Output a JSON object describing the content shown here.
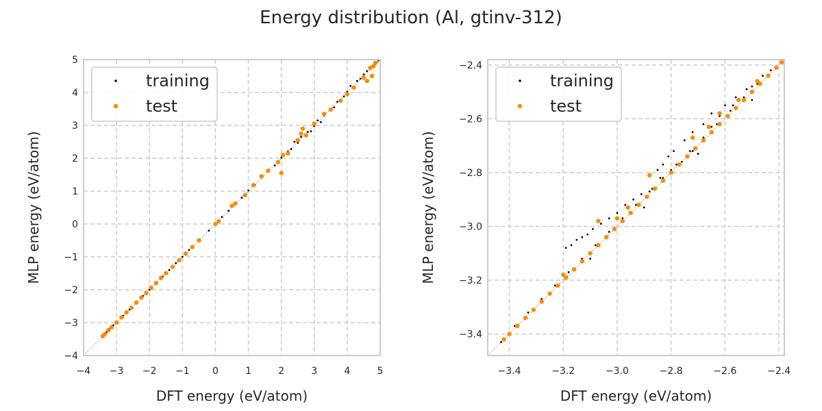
{
  "figure": {
    "title": "Energy distribution (Al, gtinv-312)"
  },
  "chart_data": [
    {
      "type": "scatter",
      "xlabel": "DFT energy (eV/atom)",
      "ylabel": "MLP energy (eV/atom)",
      "xlim": [
        -4,
        5
      ],
      "ylim": [
        -4,
        5
      ],
      "xticks": [
        "−4",
        "−3",
        "−2",
        "−1",
        "0",
        "1",
        "2",
        "3",
        "4",
        "5"
      ],
      "yticks": [
        "−4",
        "−3",
        "−2",
        "−1",
        "0",
        "1",
        "2",
        "3",
        "4",
        "5"
      ],
      "grid": true,
      "legend_position": "top-left",
      "diagonal_reference": true,
      "series": [
        {
          "name": "training",
          "color": "#000000",
          "points": [
            [
              -3.4,
              -3.38
            ],
            [
              -3.3,
              -3.29
            ],
            [
              -3.2,
              -3.18
            ],
            [
              -3.1,
              -3.08
            ],
            [
              -3.0,
              -2.99
            ],
            [
              -2.8,
              -2.79
            ],
            [
              -2.6,
              -2.6
            ],
            [
              -2.4,
              -2.4
            ],
            [
              -2.2,
              -2.19
            ],
            [
              -2.0,
              -2.0
            ],
            [
              -1.8,
              -1.79
            ],
            [
              -1.6,
              -1.6
            ],
            [
              -1.4,
              -1.4
            ],
            [
              -1.2,
              -1.19
            ],
            [
              -1.0,
              -1.0
            ],
            [
              -0.8,
              -0.79
            ],
            [
              -0.5,
              -0.5
            ],
            [
              -0.2,
              -0.2
            ],
            [
              0.0,
              0.0
            ],
            [
              0.2,
              0.21
            ],
            [
              0.4,
              0.4
            ],
            [
              0.6,
              0.62
            ],
            [
              0.8,
              0.8
            ],
            [
              1.0,
              1.02
            ],
            [
              1.2,
              1.19
            ],
            [
              1.4,
              1.42
            ],
            [
              1.6,
              1.6
            ],
            [
              1.8,
              1.78
            ],
            [
              2.0,
              2.02
            ],
            [
              2.2,
              2.21
            ],
            [
              2.3,
              2.28
            ],
            [
              2.5,
              2.47
            ],
            [
              2.6,
              2.65
            ],
            [
              2.8,
              2.8
            ],
            [
              3.0,
              2.98
            ],
            [
              3.1,
              3.15
            ],
            [
              3.3,
              3.3
            ],
            [
              3.5,
              3.48
            ],
            [
              3.7,
              3.72
            ],
            [
              3.9,
              3.88
            ],
            [
              4.0,
              4.02
            ],
            [
              4.2,
              4.18
            ],
            [
              4.3,
              4.35
            ],
            [
              4.4,
              4.42
            ],
            [
              4.5,
              4.55
            ],
            [
              4.6,
              4.65
            ],
            [
              4.7,
              4.72
            ],
            [
              4.8,
              4.82
            ],
            [
              4.9,
              4.92
            ],
            [
              4.95,
              4.98
            ],
            [
              2.4,
              2.5
            ],
            [
              2.9,
              2.82
            ],
            [
              3.6,
              3.55
            ],
            [
              4.1,
              4.2
            ],
            [
              1.9,
              1.85
            ],
            [
              3.2,
              3.1
            ]
          ]
        },
        {
          "name": "test",
          "color": "#ff8c00",
          "points": [
            [
              -3.42,
              -3.41
            ],
            [
              -3.35,
              -3.34
            ],
            [
              -3.25,
              -3.23
            ],
            [
              -3.15,
              -3.14
            ],
            [
              -3.0,
              -3.0
            ],
            [
              -2.85,
              -2.84
            ],
            [
              -2.7,
              -2.69
            ],
            [
              -2.55,
              -2.55
            ],
            [
              -2.4,
              -2.39
            ],
            [
              -2.25,
              -2.24
            ],
            [
              -2.1,
              -2.1
            ],
            [
              -1.95,
              -1.94
            ],
            [
              -1.8,
              -1.8
            ],
            [
              -1.65,
              -1.64
            ],
            [
              -1.5,
              -1.5
            ],
            [
              -1.3,
              -1.3
            ],
            [
              -1.1,
              -1.1
            ],
            [
              -0.9,
              -0.9
            ],
            [
              -0.7,
              -0.7
            ],
            [
              -0.5,
              -0.5
            ],
            [
              0.0,
              0.0
            ],
            [
              0.1,
              0.08
            ],
            [
              0.5,
              0.55
            ],
            [
              0.6,
              0.62
            ],
            [
              0.9,
              0.88
            ],
            [
              1.15,
              1.18
            ],
            [
              1.4,
              1.45
            ],
            [
              1.6,
              1.62
            ],
            [
              1.9,
              1.88
            ],
            [
              2.0,
              1.55
            ],
            [
              2.05,
              2.1
            ],
            [
              2.2,
              2.15
            ],
            [
              2.5,
              2.55
            ],
            [
              2.6,
              2.75
            ],
            [
              2.65,
              2.9
            ],
            [
              2.75,
              2.7
            ],
            [
              3.0,
              3.05
            ],
            [
              3.3,
              3.35
            ],
            [
              3.5,
              3.48
            ],
            [
              3.8,
              3.75
            ],
            [
              4.0,
              3.95
            ],
            [
              4.2,
              4.15
            ],
            [
              4.5,
              4.45
            ],
            [
              4.6,
              4.35
            ],
            [
              4.7,
              4.75
            ],
            [
              4.75,
              4.5
            ],
            [
              4.8,
              4.8
            ],
            [
              4.85,
              4.9
            ]
          ]
        }
      ]
    },
    {
      "type": "scatter",
      "xlabel": "DFT energy (eV/atom)",
      "ylabel": "MLP energy (eV/atom)",
      "xlim": [
        -3.48,
        -2.38
      ],
      "ylim": [
        -3.48,
        -2.38
      ],
      "xticks": [
        "−3.4",
        "−3.2",
        "−3.0",
        "−2.8",
        "−2.6",
        "−2.4"
      ],
      "yticks": [
        "−3.4",
        "−3.2",
        "−3.0",
        "−2.8",
        "−2.6",
        "−2.4"
      ],
      "xtick_values": [
        -3.4,
        -3.2,
        -3.0,
        -2.8,
        -2.6,
        -2.4
      ],
      "ytick_values": [
        -3.4,
        -3.2,
        -3.0,
        -2.8,
        -2.6,
        -2.4
      ],
      "grid": true,
      "legend_position": "top-left",
      "diagonal_reference": true,
      "series": [
        {
          "name": "training",
          "color": "#000000",
          "points": [
            [
              -3.43,
              -3.43
            ],
            [
              -3.38,
              -3.37
            ],
            [
              -3.33,
              -3.32
            ],
            [
              -3.28,
              -3.27
            ],
            [
              -3.23,
              -3.22
            ],
            [
              -3.18,
              -3.17
            ],
            [
              -3.13,
              -3.12
            ],
            [
              -3.08,
              -3.07
            ],
            [
              -3.03,
              -3.02
            ],
            [
              -2.98,
              -2.97
            ],
            [
              -2.93,
              -2.92
            ],
            [
              -2.88,
              -2.87
            ],
            [
              -2.83,
              -2.82
            ],
            [
              -2.78,
              -2.77
            ],
            [
              -2.73,
              -2.72
            ],
            [
              -2.68,
              -2.67
            ],
            [
              -2.63,
              -2.62
            ],
            [
              -2.58,
              -2.57
            ],
            [
              -2.53,
              -2.52
            ],
            [
              -2.48,
              -2.47
            ],
            [
              -2.43,
              -2.42
            ],
            [
              -2.39,
              -2.39
            ],
            [
              -3.19,
              -3.08
            ],
            [
              -3.17,
              -3.07
            ],
            [
              -3.15,
              -3.05
            ],
            [
              -3.13,
              -3.04
            ],
            [
              -3.11,
              -3.03
            ],
            [
              -3.09,
              -3.01
            ],
            [
              -3.06,
              -2.99
            ],
            [
              -3.03,
              -2.97
            ],
            [
              -3.0,
              -2.95
            ],
            [
              -2.97,
              -2.92
            ],
            [
              -2.94,
              -2.9
            ],
            [
              -2.91,
              -2.88
            ],
            [
              -2.87,
              -2.86
            ],
            [
              -2.84,
              -2.82
            ],
            [
              -2.8,
              -2.79
            ],
            [
              -2.76,
              -2.76
            ],
            [
              -2.72,
              -2.72
            ],
            [
              -2.68,
              -2.67
            ],
            [
              -2.65,
              -2.63
            ],
            [
              -2.62,
              -2.59
            ],
            [
              -2.57,
              -2.55
            ],
            [
              -2.52,
              -2.49
            ],
            [
              -2.85,
              -2.79
            ],
            [
              -2.83,
              -2.77
            ],
            [
              -2.81,
              -2.74
            ],
            [
              -2.79,
              -2.72
            ],
            [
              -2.75,
              -2.68
            ],
            [
              -2.72,
              -2.65
            ],
            [
              -2.68,
              -2.62
            ],
            [
              -2.65,
              -2.58
            ],
            [
              -2.6,
              -2.55
            ],
            [
              -2.56,
              -2.52
            ],
            [
              -2.5,
              -2.48
            ],
            [
              -2.46,
              -2.44
            ],
            [
              -3.1,
              -3.12
            ],
            [
              -2.9,
              -2.93
            ],
            [
              -2.7,
              -2.73
            ],
            [
              -2.5,
              -2.53
            ]
          ]
        },
        {
          "name": "test",
          "color": "#ff8c00",
          "points": [
            [
              -3.42,
              -3.42
            ],
            [
              -3.4,
              -3.4
            ],
            [
              -3.37,
              -3.37
            ],
            [
              -3.34,
              -3.34
            ],
            [
              -3.31,
              -3.31
            ],
            [
              -3.28,
              -3.28
            ],
            [
              -3.25,
              -3.25
            ],
            [
              -3.22,
              -3.22
            ],
            [
              -3.19,
              -3.19
            ],
            [
              -3.16,
              -3.16
            ],
            [
              -3.13,
              -3.13
            ],
            [
              -3.1,
              -3.1
            ],
            [
              -3.07,
              -3.07
            ],
            [
              -3.04,
              -3.04
            ],
            [
              -3.01,
              -3.01
            ],
            [
              -2.98,
              -2.98
            ],
            [
              -2.95,
              -2.95
            ],
            [
              -2.92,
              -2.92
            ],
            [
              -2.89,
              -2.89
            ],
            [
              -2.86,
              -2.86
            ],
            [
              -2.83,
              -2.83
            ],
            [
              -2.8,
              -2.8
            ],
            [
              -2.77,
              -2.77
            ],
            [
              -2.74,
              -2.74
            ],
            [
              -2.71,
              -2.71
            ],
            [
              -2.68,
              -2.68
            ],
            [
              -2.65,
              -2.65
            ],
            [
              -2.62,
              -2.62
            ],
            [
              -2.59,
              -2.59
            ],
            [
              -2.56,
              -2.56
            ],
            [
              -2.53,
              -2.53
            ],
            [
              -2.5,
              -2.5
            ],
            [
              -2.47,
              -2.47
            ],
            [
              -2.44,
              -2.44
            ],
            [
              -2.41,
              -2.41
            ],
            [
              -2.39,
              -2.39
            ],
            [
              -2.88,
              -2.81
            ],
            [
              -3.07,
              -2.98
            ],
            [
              -3.0,
              -2.97
            ],
            [
              -2.72,
              -2.67
            ],
            [
              -2.66,
              -2.63
            ],
            [
              -2.62,
              -2.58
            ],
            [
              -2.55,
              -2.53
            ],
            [
              -2.48,
              -2.46
            ],
            [
              -3.2,
              -3.18
            ],
            [
              -2.96,
              -2.93
            ]
          ]
        }
      ]
    }
  ]
}
